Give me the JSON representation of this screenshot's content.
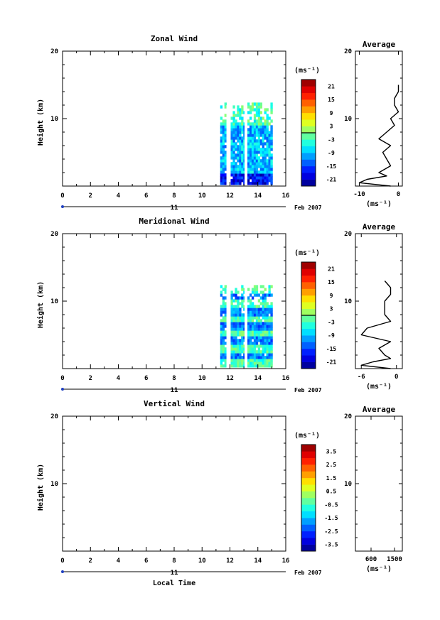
{
  "chart_data": [
    {
      "type": "heatmap",
      "title": "Zonal Wind",
      "ylabel": "Height (km)",
      "xlim": [
        0,
        16
      ],
      "ylim": [
        0,
        20
      ],
      "x_ticks": [
        "0",
        "2",
        "4",
        "6",
        "8",
        "10",
        "12",
        "14",
        "16"
      ],
      "y_ticks": [
        "10",
        "20"
      ],
      "date_day": "11",
      "date_month": "Feb 2007",
      "data_time_range": [
        11.3,
        15.0
      ],
      "data_height_range": [
        0,
        12
      ],
      "colorbar": {
        "unit": "(ms⁻¹)",
        "ticks": [
          "21",
          "15",
          "9",
          "3",
          "-3",
          "-9",
          "-15",
          "-21"
        ],
        "range": [
          -24,
          24
        ]
      },
      "average": {
        "title": "Average",
        "xlim": [
          -11,
          1
        ],
        "x_ticks": [
          "-10",
          "0"
        ],
        "xlabel": "(ms⁻¹)",
        "y_ticks": [
          "10",
          "20"
        ]
      },
      "series": [
        {
          "height": [
            0,
            0.5,
            1,
            1.5,
            2,
            3,
            4,
            5,
            6,
            7,
            8,
            9,
            10,
            11,
            12,
            13,
            14,
            15
          ],
          "value": [
            -2,
            -10,
            -8,
            -3,
            -5,
            -2,
            -3,
            -4,
            -2,
            -5,
            -3,
            -1,
            -2,
            0,
            -1,
            -1,
            0,
            0
          ]
        }
      ]
    },
    {
      "type": "heatmap",
      "title": "Meridional Wind",
      "ylabel": "Height (km)",
      "xlim": [
        0,
        16
      ],
      "ylim": [
        0,
        20
      ],
      "x_ticks": [
        "0",
        "2",
        "4",
        "6",
        "8",
        "10",
        "12",
        "14",
        "16"
      ],
      "y_ticks": [
        "10",
        "20"
      ],
      "date_day": "11",
      "date_month": "Feb 2007",
      "data_time_range": [
        11.3,
        15.0
      ],
      "data_height_range": [
        0,
        12
      ],
      "colorbar": {
        "unit": "(ms⁻¹)",
        "ticks": [
          "21",
          "15",
          "9",
          "3",
          "-3",
          "-9",
          "-15",
          "-21"
        ],
        "range": [
          -24,
          24
        ]
      },
      "average": {
        "title": "Average",
        "xlim": [
          -7,
          1
        ],
        "x_ticks": [
          "-6",
          "0"
        ],
        "xlabel": "(ms⁻¹)",
        "y_ticks": [
          "10",
          "20"
        ]
      },
      "series": [
        {
          "height": [
            0,
            0.5,
            1,
            1.5,
            2,
            3,
            4,
            5,
            6,
            7,
            8,
            9,
            10,
            11,
            12,
            13
          ],
          "value": [
            -1,
            -6,
            -4,
            -1,
            -2,
            -3,
            -1,
            -6,
            -5,
            -1,
            -2,
            -2,
            -2,
            -1,
            -1,
            -2
          ]
        }
      ]
    },
    {
      "type": "heatmap",
      "title": "Vertical Wind",
      "ylabel": "Height (km)",
      "xlabel": "Local Time",
      "xlim": [
        0,
        16
      ],
      "ylim": [
        0,
        20
      ],
      "x_ticks": [
        "0",
        "2",
        "4",
        "6",
        "8",
        "10",
        "12",
        "14",
        "16"
      ],
      "y_ticks": [
        "10",
        "20"
      ],
      "date_day": "11",
      "date_month": "Feb 2007",
      "colorbar": {
        "unit": "(ms⁻¹)",
        "ticks": [
          "3.5",
          "2.5",
          "1.5",
          "0.5",
          "-0.5",
          "-1.5",
          "-2.5",
          "-3.5"
        ],
        "range": [
          -4,
          4
        ]
      },
      "average": {
        "title": "Average",
        "xlim": [
          0,
          1800
        ],
        "x_ticks": [
          "600",
          "1500"
        ],
        "xlabel": "(ms⁻¹)",
        "y_ticks": [
          "10",
          "20"
        ]
      },
      "series": []
    }
  ]
}
